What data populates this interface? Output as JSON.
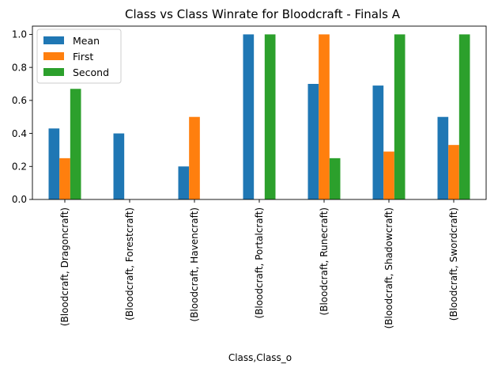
{
  "chart_data": {
    "type": "bar",
    "title": "Class vs Class Winrate for Bloodcraft - Finals A",
    "xlabel": "Class,Class_o",
    "ylabel": "",
    "ylim": [
      0,
      1.05
    ],
    "yticks": [
      "0.0",
      "0.2",
      "0.4",
      "0.6",
      "0.8",
      "1.0"
    ],
    "categories": [
      "(Bloodcraft, Dragoncraft)",
      "(Bloodcraft, Forestcraft)",
      "(Bloodcraft, Havencraft)",
      "(Bloodcraft, Portalcraft)",
      "(Bloodcraft, Runecraft)",
      "(Bloodcraft, Shadowcraft)",
      "(Bloodcraft, Swordcraft)"
    ],
    "series": [
      {
        "name": "Mean",
        "color": "#1f77b4",
        "values": [
          0.43,
          0.4,
          0.2,
          1.0,
          0.7,
          0.69,
          0.5
        ]
      },
      {
        "name": "First",
        "color": "#ff7f0e",
        "values": [
          0.25,
          0.0,
          0.5,
          0.0,
          1.0,
          0.29,
          0.33
        ]
      },
      {
        "name": "Second",
        "color": "#2ca02c",
        "values": [
          0.67,
          0.0,
          0.0,
          1.0,
          0.25,
          1.0,
          1.0
        ]
      }
    ],
    "grid": false,
    "legend": "top-left"
  }
}
